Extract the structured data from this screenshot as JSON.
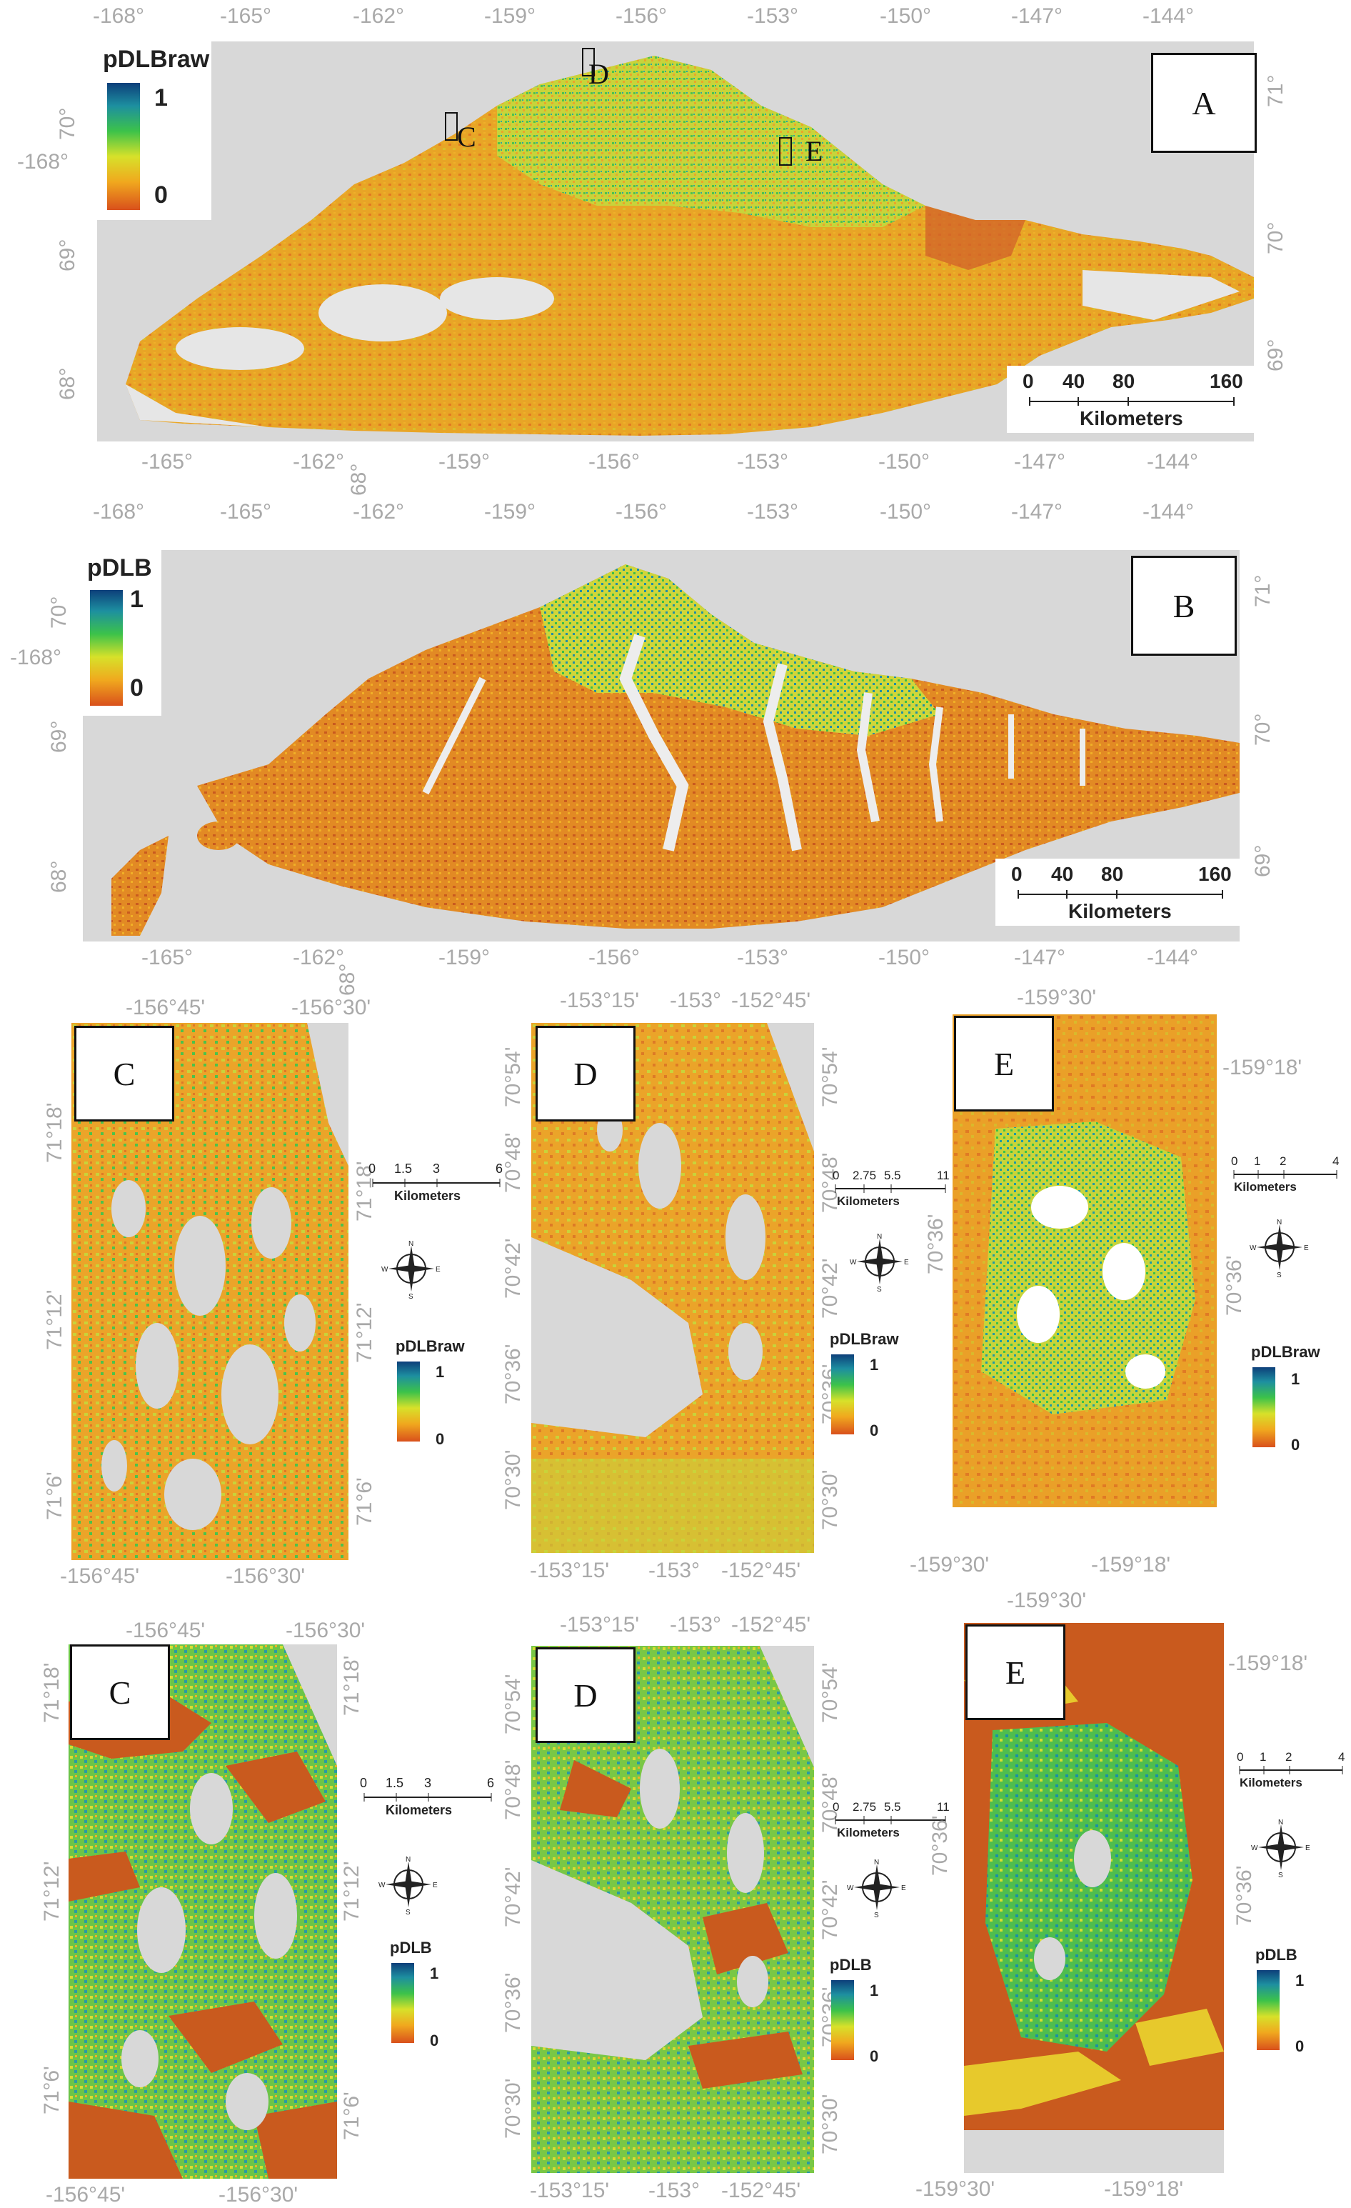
{
  "panelA": {
    "label": "A",
    "top_lon": [
      "-168°",
      "-165°",
      "-162°",
      "-159°",
      "-156°",
      "-153°",
      "-150°",
      "-147°",
      "-144°"
    ],
    "bottom_lon": [
      "-165°",
      "-162°",
      "-159°",
      "-156°",
      "-153°",
      "-150°",
      "-147°",
      "-144°"
    ],
    "extra_bottom": "68°",
    "left_lat": [
      "70°",
      "69°",
      "68°"
    ],
    "left_extra": "-168°",
    "right_lat": [
      "71°",
      "70°",
      "69°"
    ],
    "legend_title": "pDLBraw",
    "legend_max": "1",
    "legend_min": "0",
    "scale_ticks": [
      "0",
      "40",
      "80",
      "160"
    ],
    "scale_unit": "Kilometers",
    "insets": [
      "C",
      "D",
      "E"
    ]
  },
  "panelB": {
    "label": "B",
    "top_lon": [
      "-168°",
      "-165°",
      "-162°",
      "-159°",
      "-156°",
      "-153°",
      "-150°",
      "-147°",
      "-144°"
    ],
    "bottom_lon": [
      "-165°",
      "-162°",
      "-159°",
      "-156°",
      "-153°",
      "-150°",
      "-147°",
      "-144°"
    ],
    "extra_bottom": "68°",
    "left_lat": [
      "70°",
      "69°",
      "68°"
    ],
    "left_extra": "-168°",
    "right_lat": [
      "71°",
      "70°",
      "69°"
    ],
    "legend_title": "pDLB",
    "legend_max": "1",
    "legend_min": "0",
    "scale_ticks": [
      "0",
      "40",
      "80",
      "160"
    ],
    "scale_unit": "Kilometers"
  },
  "row1": {
    "C": {
      "label": "C",
      "top": [
        "-156°45'",
        "-156°30'"
      ],
      "bottom": [
        "-156°45'",
        "-156°30'"
      ],
      "left": [
        "71°18'",
        "71°12'",
        "71°6'"
      ],
      "right": [
        "71°18'",
        "71°12'",
        "71°6'"
      ],
      "scale_ticks": [
        "0",
        "1.5",
        "3",
        "6"
      ],
      "scale_unit": "Kilometers",
      "legend_title": "pDLBraw",
      "legend_max": "1",
      "legend_min": "0"
    },
    "D": {
      "label": "D",
      "top": [
        "-153°15'",
        "-153°",
        "-152°45'"
      ],
      "bottom": [
        "-153°15'",
        "-153°",
        "-152°45'"
      ],
      "left": [
        "70°54'",
        "70°48'",
        "70°42'",
        "70°36'",
        "70°30'"
      ],
      "right": [
        "70°54'",
        "70°48'",
        "70°42'",
        "70°36'",
        "70°30'"
      ],
      "scale_ticks": [
        "0",
        "2.75",
        "5.5",
        "11"
      ],
      "scale_unit": "Kilometers",
      "legend_title": "pDLBraw",
      "legend_max": "1",
      "legend_min": "0"
    },
    "E": {
      "label": "E",
      "top": [
        "-159°30'"
      ],
      "bottom": [
        "-159°30'",
        "-159°18'"
      ],
      "left": [
        "70°36'"
      ],
      "right": [
        "-159°18'",
        "70°36'"
      ],
      "scale_ticks": [
        "0",
        "1",
        "2",
        "4"
      ],
      "scale_unit": "Kilometers",
      "legend_title": "pDLBraw",
      "legend_max": "1",
      "legend_min": "0"
    }
  },
  "row2": {
    "C": {
      "label": "C",
      "top": [
        "-156°45'",
        "-156°30'"
      ],
      "bottom": [
        "-156°45'",
        "-156°30'"
      ],
      "left": [
        "71°18'",
        "71°12'",
        "71°6'"
      ],
      "right": [
        "71°18'",
        "71°12'",
        "71°6'"
      ],
      "scale_ticks": [
        "0",
        "1.5",
        "3",
        "6"
      ],
      "scale_unit": "Kilometers",
      "legend_title": "pDLB",
      "legend_max": "1",
      "legend_min": "0"
    },
    "D": {
      "label": "D",
      "top": [
        "-153°15'",
        "-153°",
        "-152°45'"
      ],
      "bottom": [
        "-153°15'",
        "-153°",
        "-152°45'"
      ],
      "left": [
        "70°54'",
        "70°48'",
        "70°42'",
        "70°36'",
        "70°30'"
      ],
      "right": [
        "70°54'",
        "70°48'",
        "70°42'",
        "70°36'",
        "70°30'"
      ],
      "scale_ticks": [
        "0",
        "2.75",
        "5.5",
        "11"
      ],
      "scale_unit": "Kilometers",
      "legend_title": "pDLB",
      "legend_max": "1",
      "legend_min": "0"
    },
    "E": {
      "label": "E",
      "top": [
        "-159°30'"
      ],
      "bottom": [
        "-159°30'",
        "-159°18'"
      ],
      "left": [
        "70°36'"
      ],
      "right": [
        "-159°18'",
        "70°36'"
      ],
      "scale_ticks": [
        "0",
        "1",
        "2",
        "4"
      ],
      "scale_unit": "Kilometers",
      "legend_title": "pDLB",
      "legend_max": "1",
      "legend_min": "0"
    }
  },
  "compass": {
    "n": "N",
    "s": "S",
    "e": "E",
    "w": "W"
  },
  "colors": {
    "high": "#0d3f7a",
    "mid": "#3cc24a",
    "low": "#d9501c",
    "background": "#d8d8d8",
    "water": "#e6e6e6"
  }
}
